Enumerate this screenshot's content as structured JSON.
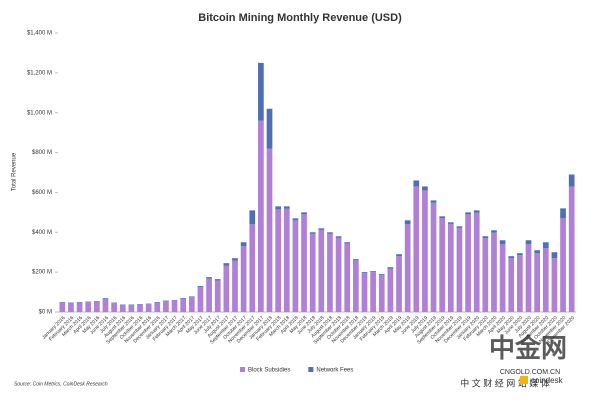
{
  "chart_data": {
    "type": "stacked_bar",
    "title": "Bitcoin Mining Monthly Revenue (USD)",
    "y_label": "Total Revenue",
    "source": "Source: Coin Metrics, CoinDesk Research",
    "annotations": [
      "中金网",
      "CNGOLD.COM.CN",
      "中 文 财 经 网 站 媒 体",
      "coindesk"
    ],
    "categories": [
      "January 2016",
      "February 2016",
      "March 2016",
      "April 2016",
      "May 2016",
      "June 2016",
      "July 2016",
      "August 2016",
      "September 2016",
      "October 2016",
      "November 2016",
      "December 2016",
      "January 2017",
      "February 2017",
      "March 2017",
      "April 2017",
      "May 2017",
      "June 2017",
      "July 2017",
      "August 2017",
      "September 2017",
      "October 2017",
      "November 2017",
      "December 2017",
      "January 2018",
      "February 2018",
      "March 2018",
      "April 2018",
      "May 2018",
      "June 2018",
      "July 2018",
      "August 2018",
      "September 2018",
      "October 2018",
      "November 2018",
      "December 2018",
      "January 2019",
      "February 2019",
      "March 2019",
      "April 2019",
      "May 2019",
      "June 2019",
      "July 2019",
      "August 2019",
      "September 2019",
      "October 2019",
      "November 2019",
      "December 2019",
      "January 2020",
      "February 2020",
      "March 2020",
      "April 2020",
      "May 2020",
      "June 2020",
      "July 2020",
      "August 2020",
      "September 2020",
      "October 2020",
      "November 2020",
      "December 2020"
    ],
    "series": [
      {
        "name": "Block Subsidies",
        "color": "#b07fd6",
        "values": [
          48,
          46,
          48,
          50,
          53,
          67,
          46,
          36,
          36,
          38,
          40,
          48,
          56,
          58,
          66,
          74,
          124,
          167,
          157,
          233,
          258,
          330,
          440,
          960,
          820,
          515,
          518,
          460,
          490,
          392,
          412,
          392,
          372,
          343,
          259,
          195,
          200,
          185,
          218,
          280,
          440,
          630,
          610,
          548,
          470,
          442,
          422,
          490,
          498,
          370,
          398,
          340,
          270,
          285,
          340,
          295,
          320,
          270,
          470,
          630
        ]
      },
      {
        "name": "Network Fees",
        "color": "#4e6fb5",
        "values": [
          2,
          2,
          2,
          2,
          2,
          3,
          2,
          2,
          2,
          2,
          2,
          2,
          2,
          2,
          4,
          4,
          6,
          8,
          8,
          12,
          12,
          20,
          70,
          290,
          200,
          15,
          12,
          10,
          10,
          8,
          8,
          8,
          8,
          7,
          6,
          5,
          5,
          5,
          7,
          10,
          20,
          30,
          20,
          12,
          10,
          8,
          8,
          10,
          12,
          10,
          12,
          20,
          10,
          10,
          20,
          15,
          30,
          30,
          50,
          60
        ]
      }
    ],
    "ylim": [
      0,
      1400
    ],
    "yticks": [
      {
        "value": 0,
        "label": "$0 M"
      },
      {
        "value": 200,
        "label": "$200 M"
      },
      {
        "value": 400,
        "label": "$400 M"
      },
      {
        "value": 600,
        "label": "$600 M"
      },
      {
        "value": 800,
        "label": "$800 M"
      },
      {
        "value": 1000,
        "label": "$1,000 M"
      },
      {
        "value": 1200,
        "label": "$1,200 M"
      },
      {
        "value": 1400,
        "label": "$1,400 M"
      }
    ],
    "grid": false
  }
}
